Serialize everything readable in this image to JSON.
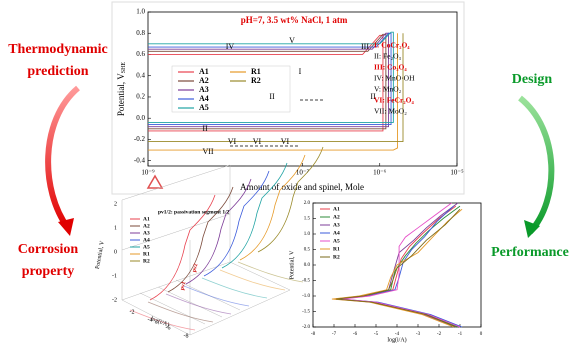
{
  "side_labels": {
    "thermodynamic": [
      "Thermodynamic",
      "prediction"
    ],
    "corrosion": [
      "Corrosion",
      "property"
    ],
    "design": "Design",
    "performance": "Performance"
  },
  "top_chart": {
    "type": "line",
    "title": "pH=7, 3.5 wt% NaCl, 1 atm",
    "x_label": "Amount of oxide and spinel, Mole",
    "y_label": "Potential, V",
    "y_label_sub": "SHE",
    "log_x": true,
    "xlim": [
      1e-09,
      1e-05
    ],
    "xticks": [
      {
        "value": 1e-09,
        "label": "10⁻⁹"
      },
      {
        "value": 1e-07,
        "label": "10⁻⁷"
      },
      {
        "value": 1e-06,
        "label": "10⁻⁶"
      },
      {
        "value": 1e-05,
        "label": "10⁻⁵"
      }
    ],
    "ylim": [
      -0.45,
      1.0
    ],
    "yticks": [
      -0.4,
      -0.2,
      {
        "value": 0,
        "label": "0.0"
      },
      0.2,
      0.4,
      0.6,
      0.8,
      {
        "value": 1,
        "label": "1.0"
      }
    ],
    "series": [
      {
        "name": "A1",
        "color": "#e8414e",
        "x": [
          1e-09,
          6e-07,
          1e-06,
          1.1e-06,
          1.1e-06,
          1e-09
        ],
        "values": [
          0.6,
          0.6,
          0.78,
          0.78,
          -0.12,
          -0.12
        ]
      },
      {
        "name": "A2",
        "color": "#7b4a3a",
        "x": [
          1e-09,
          7e-07,
          1.1e-06,
          1.2e-06,
          1.2e-06,
          1e-09
        ],
        "values": [
          0.63,
          0.63,
          0.79,
          0.79,
          -0.1,
          -0.1
        ]
      },
      {
        "name": "A3",
        "color": "#7d3c98",
        "x": [
          1e-09,
          8e-07,
          1.2e-06,
          1.3e-06,
          1.3e-06,
          1e-09
        ],
        "values": [
          0.65,
          0.65,
          0.8,
          0.8,
          -0.08,
          -0.08
        ]
      },
      {
        "name": "A4",
        "color": "#3b5bdb",
        "x": [
          1e-09,
          9e-07,
          1.3e-06,
          1.4e-06,
          1.4e-06,
          1e-09
        ],
        "values": [
          0.67,
          0.67,
          0.8,
          0.8,
          -0.06,
          -0.06
        ]
      },
      {
        "name": "A5",
        "color": "#1fa3a3",
        "x": [
          1e-09,
          1e-06,
          1.4e-06,
          1.5e-06,
          1.5e-06,
          1e-09
        ],
        "values": [
          0.7,
          0.7,
          0.81,
          0.81,
          -0.04,
          -0.04
        ]
      },
      {
        "name": "R1",
        "color": "#e69a28",
        "x": [
          1e-09,
          1.5e-06,
          1.7e-06,
          1.7e-06
        ],
        "values": [
          -0.3,
          -0.3,
          -0.28,
          0.8
        ]
      },
      {
        "name": "R2",
        "color": "#9a8a2a",
        "x": [
          1e-09,
          2e-06,
          2e-06
        ],
        "values": [
          -0.22,
          -0.22,
          0.8
        ]
      }
    ],
    "region_labels": [
      "IV",
      "V",
      "III",
      "I",
      "II",
      "II",
      "II",
      "VII",
      "VI",
      "VI",
      "VI"
    ],
    "phases": [
      {
        "text": "I: CoCr₂O₄",
        "highlight": true
      },
      {
        "text": "II: Fe₂O₃",
        "highlight": false
      },
      {
        "text": "III: Co₃O₄",
        "highlight": true
      },
      {
        "text": "IV: MnO·OH",
        "highlight": false
      },
      {
        "text": "V: MnO₂",
        "highlight": false
      },
      {
        "text": "VI: FeCr₂O₄",
        "highlight": true
      },
      {
        "text": "VII: MoO₂",
        "highlight": false
      }
    ]
  },
  "left_3d": {
    "title": "pv1/2: passivation segment 1/2",
    "legend": [
      "A1",
      "A2",
      "A3",
      "A4",
      "A5",
      "R1",
      "R2"
    ],
    "y_label": "Potential, V",
    "x_label": "log(i/A)",
    "z_ticks": [
      "2",
      "1",
      "0",
      "-1",
      "-2"
    ],
    "x_ticks": [
      "-2",
      "-4",
      "-6",
      "-8"
    ],
    "markers": [
      "pv1",
      "pv2"
    ]
  },
  "right_chart": {
    "type": "line",
    "x_label": "log(i/A)",
    "y_label": "Potential, V",
    "xlim": [
      -8,
      0
    ],
    "xticks": [
      -8,
      -7,
      -6,
      -5,
      -4,
      -3,
      -2,
      -1,
      0
    ],
    "ylim": [
      -2,
      2
    ],
    "yticks": [
      {
        "value": -2,
        "label": "-2.0"
      },
      -1.5,
      {
        "value": -1,
        "label": "-1.0"
      },
      -0.5,
      {
        "value": 0,
        "label": "0.0"
      },
      0.5,
      {
        "value": 1,
        "label": "1.0"
      },
      1.5,
      {
        "value": 2,
        "label": "2.0"
      }
    ],
    "series": [
      {
        "name": "A1",
        "color": "#e8414e",
        "x": [
          -1.0,
          -2.5,
          -5.0,
          -6.8,
          -5.5,
          -4.2,
          -4.0,
          -3.8,
          -3.4,
          -2.8,
          -2.0,
          -1.2
        ],
        "values": [
          -2.0,
          -1.6,
          -1.2,
          -1.1,
          -1.0,
          -0.8,
          -0.3,
          0.2,
          0.6,
          1.0,
          1.5,
          1.9
        ]
      },
      {
        "name": "A2",
        "color": "#2e8b3a",
        "x": [
          -1.1,
          -2.6,
          -5.1,
          -6.9,
          -5.6,
          -4.3,
          -4.1,
          -3.6,
          -3.1,
          -2.5,
          -1.8,
          -1.0
        ],
        "values": [
          -2.0,
          -1.6,
          -1.2,
          -1.1,
          -1.0,
          -0.8,
          -0.2,
          0.3,
          0.7,
          1.1,
          1.5,
          1.9
        ]
      },
      {
        "name": "A3",
        "color": "#7d3c98",
        "x": [
          -1.2,
          -2.7,
          -5.2,
          -7.0,
          -5.7,
          -4.4,
          -4.2,
          -3.9,
          -3.2,
          -2.6,
          -1.9,
          -1.1
        ],
        "values": [
          -2.0,
          -1.6,
          -1.2,
          -1.1,
          -1.0,
          -0.8,
          -0.3,
          0.4,
          0.8,
          1.2,
          1.6,
          2.0
        ]
      },
      {
        "name": "A4",
        "color": "#3b5bdb",
        "x": [
          -0.9,
          -2.4,
          -4.9,
          -6.7,
          -5.4,
          -4.1,
          -3.9,
          -3.7,
          -3.3,
          -2.7,
          -2.1,
          -1.3
        ],
        "values": [
          -2.0,
          -1.6,
          -1.2,
          -1.1,
          -1.0,
          -0.8,
          -0.4,
          0.1,
          0.5,
          0.9,
          1.4,
          1.9
        ]
      },
      {
        "name": "A5",
        "color": "#e64fc8",
        "x": [
          -1.0,
          -2.5,
          -5.0,
          -6.6,
          -5.3,
          -4.0,
          -3.9,
          -3.9,
          -3.6,
          -3.0,
          -2.2,
          -1.4
        ],
        "values": [
          -2.0,
          -1.6,
          -1.2,
          -1.1,
          -1.0,
          -0.8,
          -0.3,
          0.6,
          0.9,
          1.2,
          1.6,
          2.0
        ]
      },
      {
        "name": "R1",
        "color": "#e69a28",
        "x": [
          -1.3,
          -2.8,
          -5.3,
          -7.1,
          -5.8,
          -4.5,
          -4.3,
          -4.0,
          -3.0,
          -2.3,
          -1.6,
          -0.9
        ],
        "values": [
          -2.0,
          -1.6,
          -1.2,
          -1.1,
          -1.0,
          -0.8,
          -0.4,
          0.0,
          0.4,
          0.9,
          1.4,
          1.8
        ]
      },
      {
        "name": "R2",
        "color": "#7a6a1a",
        "x": [
          -1.2,
          -2.6,
          -5.2,
          -6.9,
          -5.6,
          -4.4,
          -4.2,
          -4.0,
          -3.3,
          -2.6,
          -1.7,
          -1.0
        ],
        "values": [
          -2.0,
          -1.6,
          -1.2,
          -1.1,
          -1.0,
          -0.8,
          -0.5,
          -0.1,
          0.3,
          0.8,
          1.3,
          1.8
        ]
      }
    ]
  }
}
